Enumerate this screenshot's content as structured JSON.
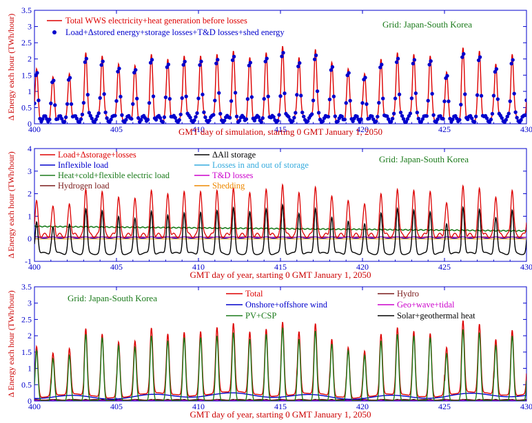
{
  "chart_data": [
    {
      "type": "line",
      "panel": "top",
      "xlabel": "GMT day of simulation, starting 0 GMT January 1, 2050",
      "ylabel": "Δ Energy each hour (TWh/hour)",
      "xlim": [
        400,
        430
      ],
      "ylim": [
        0,
        3.5
      ],
      "xticks": [
        400,
        405,
        410,
        415,
        420,
        425,
        430
      ],
      "yticks": [
        0,
        0.5,
        1,
        1.5,
        2,
        2.5,
        3,
        3.5
      ],
      "grid": false,
      "grid_label": "Grid: Japan-South Korea",
      "legend_position": "top-left",
      "day_peaks": [
        1.7,
        1.45,
        1.55,
        2.2,
        2.1,
        1.85,
        1.8,
        2.15,
        2.0,
        2.1,
        2.1,
        2.15,
        2.25,
        2.05,
        2.2,
        2.4,
        2.05,
        2.3,
        1.9,
        1.7,
        1.55,
        2.0,
        2.2,
        2.15,
        2.1,
        1.6,
        2.35,
        2.25,
        1.85,
        2.15
      ],
      "base": 0.15,
      "series": [
        {
          "name": "Total WWS electricity+heat generation before losses",
          "color": "#dd0000",
          "style": "line"
        },
        {
          "name": "Load+Δstored energy+storage losses+T&D losses+shed energy",
          "color": "#0000cc",
          "style": "markers"
        }
      ]
    },
    {
      "type": "line",
      "panel": "middle",
      "xlabel": "GMT day of year, starting 0 GMT January 1, 2050",
      "ylabel": "Δ Energy each hour (TWh/hour)",
      "xlim": [
        400,
        430
      ],
      "ylim": [
        -1,
        4
      ],
      "xticks": [
        400,
        405,
        410,
        415,
        420,
        425,
        430
      ],
      "yticks": [
        -1,
        0,
        1,
        2,
        3,
        4
      ],
      "grid": false,
      "grid_label": "Grid: Japan-South Korea",
      "legend_position": "top-left",
      "series": [
        {
          "name": "Load+Δstorage+losses",
          "color": "#dd0000"
        },
        {
          "name": "Inflexible load",
          "color": "#0000cc"
        },
        {
          "name": "Heat+cold+flexible electric load",
          "color": "#1a7a1a"
        },
        {
          "name": "Hydrogen load",
          "color": "#7a1a1a"
        },
        {
          "name": "ΔAll storage",
          "color": "#000000"
        },
        {
          "name": "Losses in and out of storage",
          "color": "#33aadd"
        },
        {
          "name": "T&D losses",
          "color": "#cc00cc"
        },
        {
          "name": "Shedding",
          "color": "#ee8800"
        }
      ],
      "heat_load_start": 0.55,
      "heat_load_end": 0.35,
      "storage_trough": -0.65
    },
    {
      "type": "line",
      "panel": "bottom",
      "xlabel": "GMT day of year, starting 0 GMT January 1, 2050",
      "ylabel": "Δ Energy each hour (TWh/hour)",
      "xlim": [
        400,
        430
      ],
      "ylim": [
        0,
        3.5
      ],
      "xticks": [
        400,
        405,
        410,
        415,
        420,
        425,
        430
      ],
      "yticks": [
        0,
        0.5,
        1,
        1.5,
        2,
        2.5,
        3,
        3.5
      ],
      "grid": false,
      "grid_label": "Grid: Japan-South Korea",
      "legend_position": "top-right",
      "series": [
        {
          "name": "Total",
          "color": "#dd0000"
        },
        {
          "name": "Onshore+offshore wind",
          "color": "#0000cc"
        },
        {
          "name": "PV+CSP",
          "color": "#1a7a1a"
        },
        {
          "name": "Hydro",
          "color": "#7a1a1a"
        },
        {
          "name": "Geo+wave+tidal",
          "color": "#cc00cc"
        },
        {
          "name": "Solar+geothermal heat",
          "color": "#000000"
        }
      ],
      "wind_level": 0.15
    }
  ]
}
